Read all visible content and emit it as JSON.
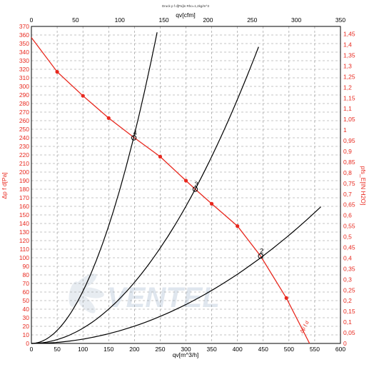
{
  "chart_data": {
    "type": "line",
    "title": "Druck p f d[Pa]in Rho=1,2kg/m^3",
    "xlabel": "qv[m^3/h]",
    "x2label": "qv[cfm]",
    "ylabel": "Δp f d[Pa]",
    "y2label": "pfs_E[IN H2O]",
    "xlim": [
      0,
      600
    ],
    "ylim": [
      0,
      370
    ],
    "x2lim": [
      0,
      350
    ],
    "y2lim": [
      0,
      1.45
    ],
    "x_ticks": [
      "0",
      "50",
      "100",
      "150",
      "200",
      "250",
      "300",
      "350",
      "400",
      "450",
      "500",
      "550",
      "600"
    ],
    "x2_ticks": [
      "0",
      "50",
      "100",
      "150",
      "200",
      "250",
      "300",
      "350"
    ],
    "y_ticks": [
      "0",
      "10",
      "20",
      "30",
      "40",
      "50",
      "60",
      "70",
      "80",
      "90",
      "100",
      "110",
      "120",
      "130",
      "140",
      "150",
      "160",
      "170",
      "180",
      "190",
      "200",
      "210",
      "220",
      "230",
      "240",
      "250",
      "260",
      "270",
      "280",
      "290",
      "300",
      "310",
      "320",
      "330",
      "340",
      "350",
      "360",
      "370"
    ],
    "y2_ticks": [
      "0",
      "0,05",
      "0,1",
      "0,15",
      "0,2",
      "0,25",
      "0,3",
      "0,35",
      "0,4",
      "0,45",
      "0,5",
      "0,55",
      "0,6",
      "0,65",
      "0,7",
      "0,75",
      "0,8",
      "0,85",
      "0,9",
      "0,95",
      "1",
      "1,05",
      "1,1",
      "1,15",
      "1,2",
      "1,25",
      "1,3",
      "1,35",
      "1,4",
      "1,45"
    ],
    "grid": true,
    "series": [
      {
        "kind": "fan",
        "color": "#e8281e",
        "label": "Δp f d",
        "points": [
          [
            0,
            357
          ],
          [
            50,
            317
          ],
          [
            100,
            289
          ],
          [
            150,
            263
          ],
          [
            200,
            240
          ],
          [
            250,
            218
          ],
          [
            300,
            190
          ],
          [
            318,
            180
          ],
          [
            350,
            163
          ],
          [
            400,
            137
          ],
          [
            445,
            102
          ],
          [
            495,
            53
          ],
          [
            540,
            0
          ]
        ],
        "markers": [
          [
            50,
            317
          ],
          [
            100,
            289
          ],
          [
            150,
            263
          ],
          [
            250,
            218
          ],
          [
            300,
            190
          ],
          [
            350,
            163
          ],
          [
            400,
            137
          ],
          [
            495,
            53
          ]
        ]
      },
      {
        "kind": "system",
        "color": "#000000",
        "k": 0.0061,
        "x_end": 244
      },
      {
        "kind": "system",
        "color": "#000000",
        "k": 0.00178,
        "x_end": 441
      },
      {
        "kind": "system",
        "color": "#000000",
        "k": 0.000505,
        "x_end": 562
      }
    ],
    "operating_points": [
      {
        "label": "4",
        "x": 199,
        "y": 240
      },
      {
        "label": "3",
        "x": 318,
        "y": 180
      },
      {
        "label": "2",
        "x": 445,
        "y": 102
      }
    ]
  },
  "watermark": {
    "text": "VENTEL",
    "color": "#dfe6ee"
  }
}
